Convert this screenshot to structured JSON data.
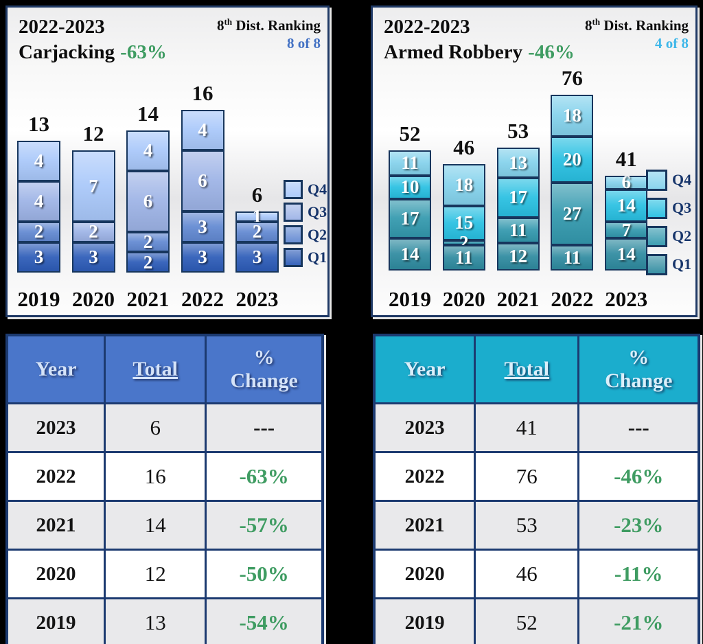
{
  "page_bg": "#000000",
  "chart_data": [
    {
      "type": "stacked-bar",
      "panel_side": "left",
      "title_line1": "2022-2023",
      "crime_name": "Carjacking",
      "change_label": "-63%",
      "change_color": "#3f9c62",
      "ranking_num": "8",
      "ranking_sup": "th",
      "ranking_rest": " Dist. Ranking",
      "ranking_value": "8 of 8",
      "ranking_value_color": "#4472c4",
      "categories": [
        "2019",
        "2020",
        "2021",
        "2022",
        "2023"
      ],
      "totals": [
        13,
        12,
        14,
        16,
        6
      ],
      "stack_order_bottom_to_top": [
        "Q1",
        "Q2",
        "Q3",
        "Q4"
      ],
      "series": [
        {
          "name": "Q1",
          "color": "#2d5cb8",
          "values": [
            3,
            3,
            2,
            3,
            3
          ]
        },
        {
          "name": "Q2",
          "color": "#6289d2",
          "values": [
            2,
            0,
            2,
            3,
            2
          ]
        },
        {
          "name": "Q3",
          "color": "#9db3e6",
          "values": [
            4,
            2,
            6,
            6,
            0
          ]
        },
        {
          "name": "Q4",
          "color": "#a9c8fa",
          "values": [
            4,
            7,
            4,
            4,
            1
          ]
        }
      ],
      "legend_top_to_bottom": [
        "Q4",
        "Q3",
        "Q2",
        "Q1"
      ],
      "ylim": [
        0,
        16
      ],
      "grid": false,
      "table": {
        "headers": [
          "Year",
          "Total",
          "%\nChange"
        ],
        "header_bg": "#4a76ca",
        "rows": [
          [
            "2023",
            "6",
            "---"
          ],
          [
            "2022",
            "16",
            "-63%"
          ],
          [
            "2021",
            "14",
            "-57%"
          ],
          [
            "2020",
            "12",
            "-50%"
          ],
          [
            "2019",
            "13",
            "-54%"
          ]
        ]
      }
    },
    {
      "type": "stacked-bar",
      "panel_side": "right",
      "title_line1": "2022-2023",
      "crime_name": "Armed Robbery",
      "change_label": "-46%",
      "change_color": "#3f9c62",
      "ranking_num": "8",
      "ranking_sup": "th",
      "ranking_rest": " Dist. Ranking",
      "ranking_value": "4 of 8",
      "ranking_value_color": "#3eb7e9",
      "categories": [
        "2019",
        "2020",
        "2021",
        "2022",
        "2023"
      ],
      "totals": [
        52,
        46,
        53,
        76,
        41
      ],
      "stack_order_bottom_to_top": [
        "Q1",
        "Q2",
        "Q3",
        "Q4"
      ],
      "series": [
        {
          "name": "Q1",
          "color": "#2f8ba0",
          "values": [
            14,
            11,
            12,
            11,
            14
          ]
        },
        {
          "name": "Q2",
          "color": "#3399ae",
          "values": [
            17,
            2,
            11,
            27,
            7
          ]
        },
        {
          "name": "Q3",
          "color": "#29c0e2",
          "values": [
            10,
            15,
            17,
            20,
            14
          ]
        },
        {
          "name": "Q4",
          "color": "#84d2ec",
          "values": [
            11,
            18,
            13,
            18,
            6
          ]
        }
      ],
      "legend_top_to_bottom": [
        "Q4",
        "Q3",
        "Q2",
        "Q1"
      ],
      "ylim": [
        0,
        76
      ],
      "grid": false,
      "table": {
        "headers": [
          "Year",
          "Total",
          "%\nChange"
        ],
        "header_bg": "#1badcd",
        "rows": [
          [
            "2023",
            "41",
            "---"
          ],
          [
            "2022",
            "76",
            "-46%"
          ],
          [
            "2021",
            "53",
            "-23%"
          ],
          [
            "2020",
            "46",
            "-11%"
          ],
          [
            "2019",
            "52",
            "-21%"
          ]
        ]
      }
    }
  ]
}
